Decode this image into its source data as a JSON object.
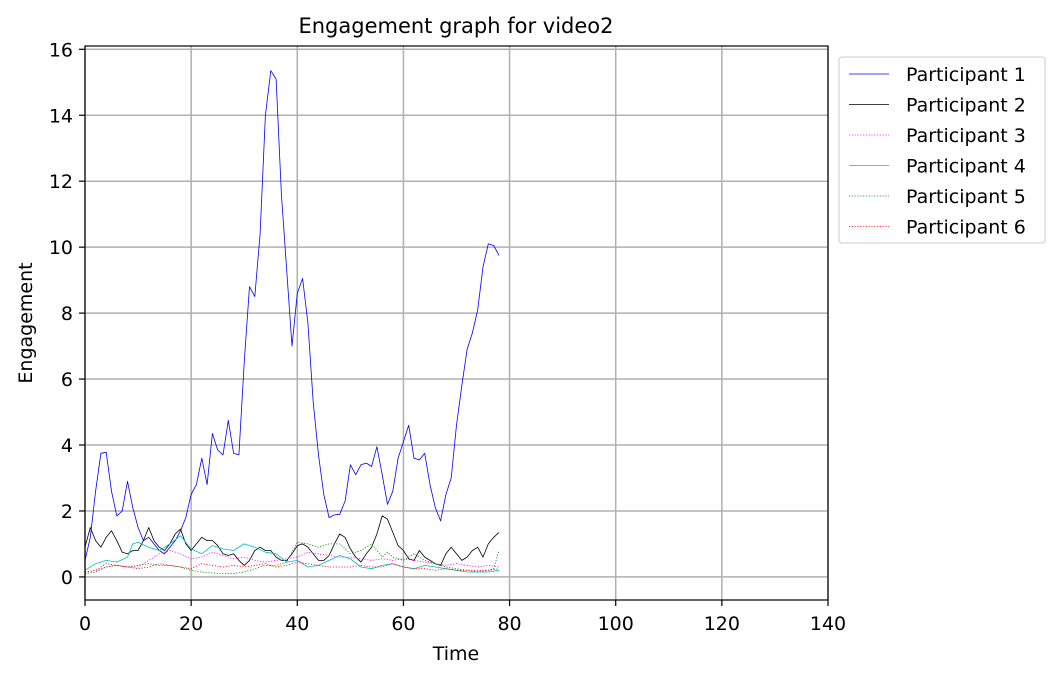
{
  "chart_data": {
    "type": "line",
    "title": "Engagement graph for video2",
    "xlabel": "Time",
    "ylabel": "Engagement",
    "xlim": [
      0,
      140
    ],
    "ylim": [
      -0.7,
      16.1
    ],
    "xticks": [
      0,
      20,
      40,
      60,
      80,
      100,
      120,
      140
    ],
    "yticks": [
      0,
      2,
      4,
      6,
      8,
      10,
      12,
      14,
      16
    ],
    "grid": true,
    "legend_position": "outside-top-right",
    "series": [
      {
        "name": "Participant 1",
        "color": "#0000ff",
        "dash": "solid",
        "points": [
          [
            0,
            0.5
          ],
          [
            1,
            1.2
          ],
          [
            2,
            2.6
          ],
          [
            3,
            3.75
          ],
          [
            4,
            3.78
          ],
          [
            5,
            2.6
          ],
          [
            6,
            1.85
          ],
          [
            7,
            2.0
          ],
          [
            8,
            2.9
          ],
          [
            9,
            2.1
          ],
          [
            10,
            1.5
          ],
          [
            11,
            1.1
          ],
          [
            12,
            1.2
          ],
          [
            13,
            1.0
          ],
          [
            14,
            0.8
          ],
          [
            15,
            0.7
          ],
          [
            16,
            0.9
          ],
          [
            17,
            1.1
          ],
          [
            18,
            1.4
          ],
          [
            19,
            1.8
          ],
          [
            20,
            2.5
          ],
          [
            21,
            2.8
          ],
          [
            22,
            3.6
          ],
          [
            23,
            2.8
          ],
          [
            24,
            4.35
          ],
          [
            25,
            3.85
          ],
          [
            26,
            3.7
          ],
          [
            27,
            4.75
          ],
          [
            28,
            3.75
          ],
          [
            29,
            3.7
          ],
          [
            30,
            6.5
          ],
          [
            31,
            8.8
          ],
          [
            32,
            8.5
          ],
          [
            33,
            10.4
          ],
          [
            34,
            14.0
          ],
          [
            35,
            15.35
          ],
          [
            36,
            15.1
          ],
          [
            37,
            11.6
          ],
          [
            38,
            9.3
          ],
          [
            39,
            7.0
          ],
          [
            40,
            8.6
          ],
          [
            41,
            9.05
          ],
          [
            42,
            7.7
          ],
          [
            43,
            5.3
          ],
          [
            44,
            3.7
          ],
          [
            45,
            2.5
          ],
          [
            46,
            1.8
          ],
          [
            47,
            1.88
          ],
          [
            48,
            1.9
          ],
          [
            49,
            2.3
          ],
          [
            50,
            3.4
          ],
          [
            51,
            3.1
          ],
          [
            52,
            3.4
          ],
          [
            53,
            3.45
          ],
          [
            54,
            3.35
          ],
          [
            55,
            3.95
          ],
          [
            56,
            3.1
          ],
          [
            57,
            2.2
          ],
          [
            58,
            2.6
          ],
          [
            59,
            3.6
          ],
          [
            60,
            4.1
          ],
          [
            61,
            4.6
          ],
          [
            62,
            3.6
          ],
          [
            63,
            3.55
          ],
          [
            64,
            3.75
          ],
          [
            65,
            2.8
          ],
          [
            66,
            2.1
          ],
          [
            67,
            1.7
          ],
          [
            68,
            2.5
          ],
          [
            69,
            3.0
          ],
          [
            70,
            4.6
          ],
          [
            71,
            5.8
          ],
          [
            72,
            6.9
          ],
          [
            73,
            7.4
          ],
          [
            74,
            8.1
          ],
          [
            75,
            9.4
          ],
          [
            76,
            10.1
          ],
          [
            77,
            10.05
          ],
          [
            78,
            9.75
          ]
        ]
      },
      {
        "name": "Participant 2",
        "color": "#000000",
        "dash": "solid",
        "points": [
          [
            0,
            0.9
          ],
          [
            1,
            1.5
          ],
          [
            2,
            1.1
          ],
          [
            3,
            0.9
          ],
          [
            4,
            1.2
          ],
          [
            5,
            1.4
          ],
          [
            6,
            1.1
          ],
          [
            7,
            0.75
          ],
          [
            8,
            0.7
          ],
          [
            9,
            0.8
          ],
          [
            10,
            0.8
          ],
          [
            11,
            1.1
          ],
          [
            12,
            1.5
          ],
          [
            13,
            1.1
          ],
          [
            14,
            0.9
          ],
          [
            15,
            0.8
          ],
          [
            16,
            1.0
          ],
          [
            17,
            1.3
          ],
          [
            18,
            1.45
          ],
          [
            19,
            1.0
          ],
          [
            20,
            0.8
          ],
          [
            21,
            1.0
          ],
          [
            22,
            1.2
          ],
          [
            23,
            1.1
          ],
          [
            24,
            1.1
          ],
          [
            25,
            0.95
          ],
          [
            26,
            0.7
          ],
          [
            27,
            0.65
          ],
          [
            28,
            0.7
          ],
          [
            29,
            0.5
          ],
          [
            30,
            0.35
          ],
          [
            31,
            0.5
          ],
          [
            32,
            0.8
          ],
          [
            33,
            0.9
          ],
          [
            34,
            0.8
          ],
          [
            35,
            0.8
          ],
          [
            36,
            0.6
          ],
          [
            37,
            0.5
          ],
          [
            38,
            0.5
          ],
          [
            39,
            0.7
          ],
          [
            40,
            0.95
          ],
          [
            41,
            1.0
          ],
          [
            42,
            0.9
          ],
          [
            43,
            0.7
          ],
          [
            44,
            0.5
          ],
          [
            45,
            0.5
          ],
          [
            46,
            0.65
          ],
          [
            47,
            1.0
          ],
          [
            48,
            1.3
          ],
          [
            49,
            1.2
          ],
          [
            50,
            0.85
          ],
          [
            51,
            0.6
          ],
          [
            52,
            0.45
          ],
          [
            53,
            0.7
          ],
          [
            54,
            0.9
          ],
          [
            55,
            1.3
          ],
          [
            56,
            1.85
          ],
          [
            57,
            1.75
          ],
          [
            58,
            1.35
          ],
          [
            59,
            0.95
          ],
          [
            60,
            0.8
          ],
          [
            61,
            0.55
          ],
          [
            62,
            0.5
          ],
          [
            63,
            0.8
          ],
          [
            64,
            0.6
          ],
          [
            65,
            0.5
          ],
          [
            66,
            0.4
          ],
          [
            67,
            0.35
          ],
          [
            68,
            0.7
          ],
          [
            69,
            0.9
          ],
          [
            70,
            0.7
          ],
          [
            71,
            0.5
          ],
          [
            72,
            0.6
          ],
          [
            73,
            0.8
          ],
          [
            74,
            0.9
          ],
          [
            75,
            0.6
          ],
          [
            76,
            1.0
          ],
          [
            77,
            1.2
          ],
          [
            78,
            1.35
          ]
        ]
      },
      {
        "name": "Participant 3",
        "color": "#ff00ff",
        "dash": "dotted",
        "points": [
          [
            0,
            0.15
          ],
          [
            2,
            0.2
          ],
          [
            4,
            0.3
          ],
          [
            6,
            0.35
          ],
          [
            8,
            0.3
          ],
          [
            10,
            0.3
          ],
          [
            12,
            0.5
          ],
          [
            14,
            0.7
          ],
          [
            16,
            0.8
          ],
          [
            18,
            0.7
          ],
          [
            20,
            0.55
          ],
          [
            22,
            0.6
          ],
          [
            24,
            0.75
          ],
          [
            26,
            0.65
          ],
          [
            28,
            0.55
          ],
          [
            30,
            0.6
          ],
          [
            32,
            0.5
          ],
          [
            34,
            0.45
          ],
          [
            36,
            0.5
          ],
          [
            38,
            0.55
          ],
          [
            40,
            0.6
          ],
          [
            42,
            0.75
          ],
          [
            44,
            0.7
          ],
          [
            46,
            0.65
          ],
          [
            48,
            0.6
          ],
          [
            50,
            0.6
          ],
          [
            52,
            0.55
          ],
          [
            54,
            0.5
          ],
          [
            56,
            0.55
          ],
          [
            58,
            0.5
          ],
          [
            60,
            0.55
          ],
          [
            62,
            0.5
          ],
          [
            64,
            0.45
          ],
          [
            66,
            0.4
          ],
          [
            68,
            0.35
          ],
          [
            70,
            0.4
          ],
          [
            72,
            0.35
          ],
          [
            74,
            0.3
          ],
          [
            76,
            0.35
          ],
          [
            78,
            0.3
          ]
        ]
      },
      {
        "name": "Participant 4",
        "color": "#00bfbf",
        "dash": "solid",
        "points": [
          [
            0,
            0.2
          ],
          [
            2,
            0.4
          ],
          [
            4,
            0.5
          ],
          [
            6,
            0.45
          ],
          [
            8,
            0.6
          ],
          [
            9,
            1.0
          ],
          [
            10,
            1.05
          ],
          [
            12,
            0.9
          ],
          [
            14,
            0.8
          ],
          [
            16,
            1.0
          ],
          [
            18,
            1.25
          ],
          [
            20,
            0.85
          ],
          [
            22,
            0.7
          ],
          [
            24,
            0.95
          ],
          [
            26,
            0.85
          ],
          [
            28,
            0.8
          ],
          [
            30,
            1.0
          ],
          [
            32,
            0.9
          ],
          [
            34,
            0.75
          ],
          [
            36,
            0.7
          ],
          [
            38,
            0.45
          ],
          [
            40,
            0.5
          ],
          [
            42,
            0.3
          ],
          [
            44,
            0.35
          ],
          [
            46,
            0.5
          ],
          [
            48,
            0.65
          ],
          [
            50,
            0.55
          ],
          [
            52,
            0.3
          ],
          [
            54,
            0.25
          ],
          [
            56,
            0.35
          ],
          [
            58,
            0.4
          ],
          [
            60,
            0.3
          ],
          [
            62,
            0.25
          ],
          [
            64,
            0.35
          ],
          [
            66,
            0.3
          ],
          [
            68,
            0.25
          ],
          [
            70,
            0.2
          ],
          [
            72,
            0.15
          ],
          [
            74,
            0.15
          ],
          [
            76,
            0.15
          ],
          [
            78,
            0.2
          ]
        ]
      },
      {
        "name": "Participant 5",
        "color": "#008000",
        "dash": "dotted",
        "points": [
          [
            0,
            0.1
          ],
          [
            2,
            0.15
          ],
          [
            4,
            0.3
          ],
          [
            6,
            0.35
          ],
          [
            8,
            0.3
          ],
          [
            10,
            0.35
          ],
          [
            12,
            0.4
          ],
          [
            14,
            0.35
          ],
          [
            16,
            0.35
          ],
          [
            18,
            0.3
          ],
          [
            20,
            0.2
          ],
          [
            22,
            0.15
          ],
          [
            24,
            0.12
          ],
          [
            26,
            0.1
          ],
          [
            28,
            0.1
          ],
          [
            30,
            0.15
          ],
          [
            32,
            0.25
          ],
          [
            34,
            0.35
          ],
          [
            36,
            0.35
          ],
          [
            38,
            0.45
          ],
          [
            40,
            1.05
          ],
          [
            42,
            1.0
          ],
          [
            44,
            0.9
          ],
          [
            46,
            1.0
          ],
          [
            48,
            1.0
          ],
          [
            50,
            0.7
          ],
          [
            52,
            0.8
          ],
          [
            54,
            1.0
          ],
          [
            56,
            0.6
          ],
          [
            57,
            0.75
          ],
          [
            58,
            0.6
          ],
          [
            60,
            0.5
          ],
          [
            62,
            0.7
          ],
          [
            64,
            0.5
          ],
          [
            66,
            0.4
          ],
          [
            68,
            0.3
          ],
          [
            70,
            0.25
          ],
          [
            72,
            0.2
          ],
          [
            74,
            0.15
          ],
          [
            76,
            0.2
          ],
          [
            77,
            0.25
          ],
          [
            78,
            0.8
          ]
        ]
      },
      {
        "name": "Participant 6",
        "color": "#ff0000",
        "dash": "dotted",
        "points": [
          [
            0,
            0.15
          ],
          [
            2,
            0.2
          ],
          [
            4,
            0.4
          ],
          [
            6,
            0.35
          ],
          [
            8,
            0.3
          ],
          [
            10,
            0.25
          ],
          [
            12,
            0.3
          ],
          [
            14,
            0.4
          ],
          [
            16,
            0.35
          ],
          [
            18,
            0.3
          ],
          [
            20,
            0.25
          ],
          [
            22,
            0.4
          ],
          [
            24,
            0.35
          ],
          [
            26,
            0.3
          ],
          [
            28,
            0.35
          ],
          [
            30,
            0.3
          ],
          [
            32,
            0.35
          ],
          [
            34,
            0.4
          ],
          [
            36,
            0.3
          ],
          [
            38,
            0.35
          ],
          [
            40,
            0.45
          ],
          [
            42,
            0.4
          ],
          [
            44,
            0.35
          ],
          [
            46,
            0.3
          ],
          [
            48,
            0.3
          ],
          [
            50,
            0.3
          ],
          [
            52,
            0.35
          ],
          [
            54,
            0.3
          ],
          [
            56,
            0.3
          ],
          [
            58,
            0.4
          ],
          [
            60,
            0.3
          ],
          [
            62,
            0.25
          ],
          [
            64,
            0.25
          ],
          [
            66,
            0.2
          ],
          [
            68,
            0.25
          ],
          [
            70,
            0.2
          ],
          [
            72,
            0.2
          ],
          [
            74,
            0.2
          ],
          [
            76,
            0.2
          ],
          [
            78,
            0.25
          ]
        ]
      }
    ]
  }
}
